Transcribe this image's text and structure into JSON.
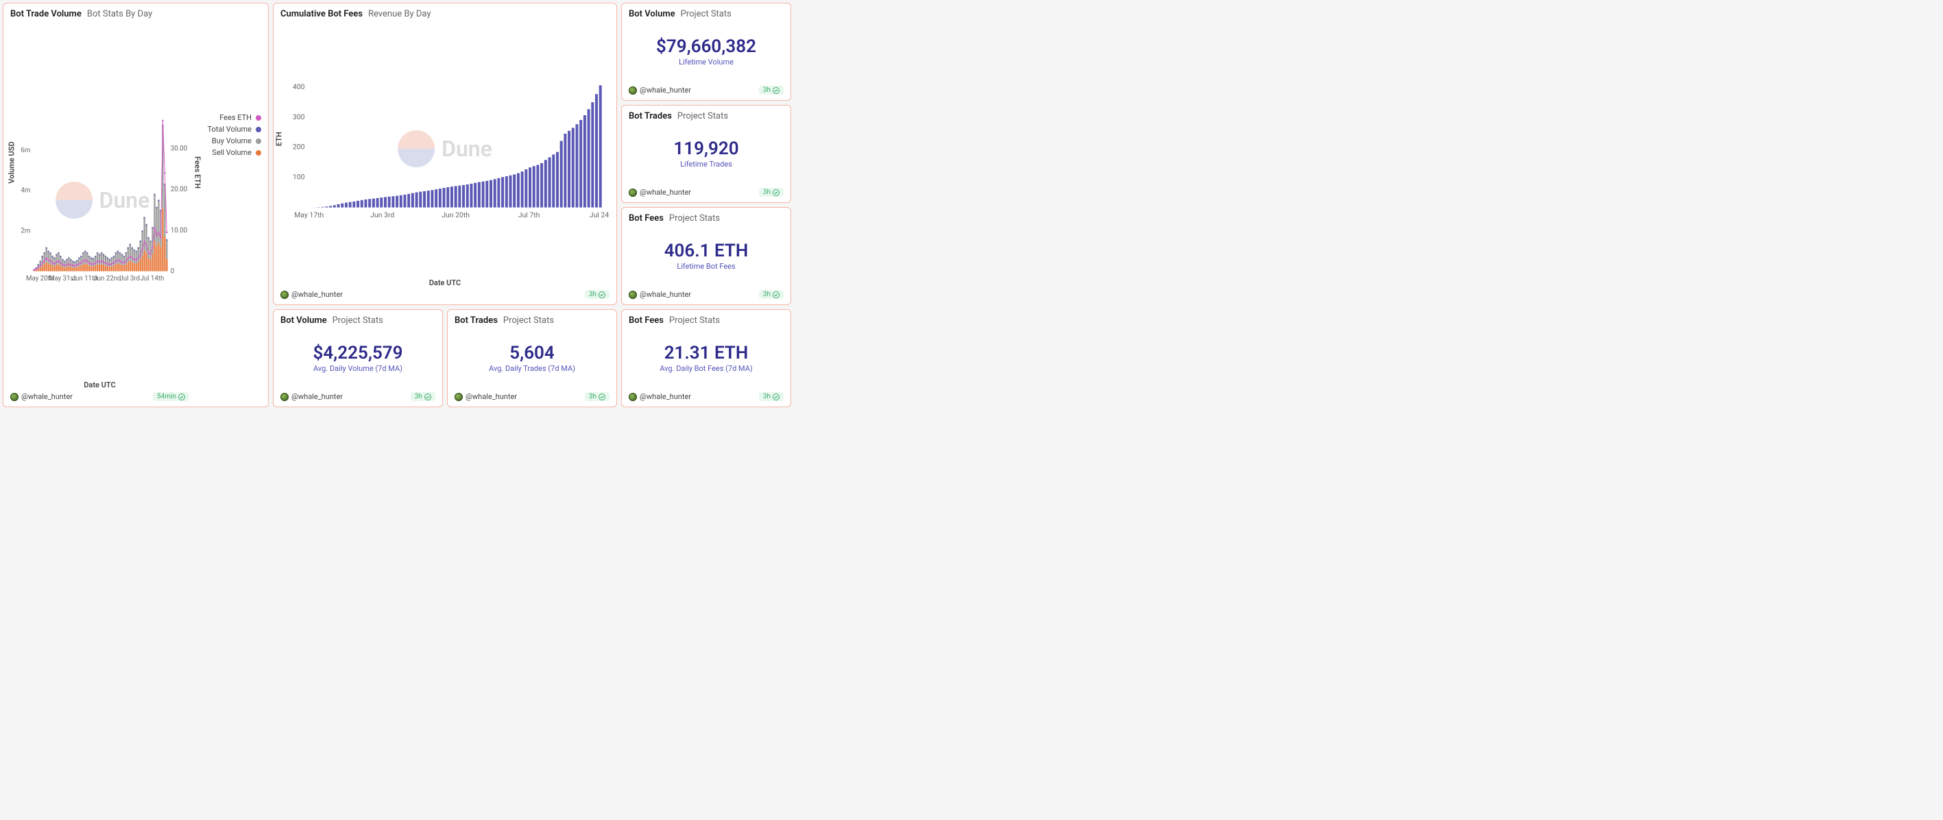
{
  "watermark": "Dune",
  "author": "@whale_hunter",
  "colors": {
    "panel_border": "#f5b5a8",
    "stat_value": "#2d2a8a",
    "stat_label": "#5553b8",
    "freshness_bg": "#e8f8ee",
    "freshness_fg": "#3aab6a",
    "grid_line": "#e8e8e8",
    "series_total": "#7a7aa8",
    "series_buy": "#9d9d9d",
    "series_sell": "#e87b3e",
    "series_fees": "#d15bc3",
    "series_cumulative": "#5b59b5"
  },
  "main_chart": {
    "title": "Bot Trade Volume",
    "subtitle": "Bot Stats By Day",
    "x_label": "Date UTC",
    "y_left_label": "Volume USD",
    "y_right_label": "Fees ETH",
    "y_left_ticks": [
      "2m",
      "4m",
      "6m"
    ],
    "y_left_tick_vals": [
      2,
      4,
      6
    ],
    "y_left_max": 7.5,
    "y_right_ticks": [
      "0",
      "10.00",
      "20.00",
      "30.00"
    ],
    "y_right_tick_vals": [
      0,
      10,
      20,
      30
    ],
    "y_right_max": 37,
    "x_ticks": [
      "May 20th",
      "May 31st",
      "Jun 11th",
      "Jun 22nd",
      "Jul 3rd",
      "Jul 14th"
    ],
    "legend": [
      {
        "label": "Fees ETH",
        "color": "#d15bc3"
      },
      {
        "label": "Total Volume",
        "color": "#5b59b5"
      },
      {
        "label": "Buy Volume",
        "color": "#9d9d9d"
      },
      {
        "label": "Sell Volume",
        "color": "#e87b3e"
      }
    ],
    "freshness": "54min",
    "buy": [
      0.05,
      0.1,
      0.2,
      0.3,
      0.45,
      0.55,
      0.7,
      0.6,
      0.55,
      0.45,
      0.4,
      0.5,
      0.55,
      0.45,
      0.35,
      0.3,
      0.35,
      0.4,
      0.35,
      0.3,
      0.28,
      0.32,
      0.4,
      0.45,
      0.55,
      0.6,
      0.55,
      0.45,
      0.4,
      0.38,
      0.45,
      0.55,
      0.5,
      0.55,
      0.5,
      0.45,
      0.4,
      0.35,
      0.4,
      0.45,
      0.55,
      0.6,
      0.55,
      0.5,
      0.45,
      0.55,
      0.7,
      0.8,
      0.7,
      0.65,
      0.6,
      0.7,
      0.9,
      1.2,
      1.6,
      1.4,
      1.0,
      0.9,
      1.3,
      2.3,
      1.9,
      2.1,
      1.8,
      4.1,
      2.6,
      0.95
    ],
    "sell": [
      0.03,
      0.06,
      0.12,
      0.18,
      0.28,
      0.35,
      0.45,
      0.38,
      0.34,
      0.28,
      0.25,
      0.32,
      0.35,
      0.28,
      0.22,
      0.18,
      0.22,
      0.26,
      0.22,
      0.18,
      0.17,
      0.2,
      0.25,
      0.28,
      0.35,
      0.38,
      0.35,
      0.28,
      0.25,
      0.24,
      0.28,
      0.35,
      0.32,
      0.35,
      0.32,
      0.28,
      0.25,
      0.22,
      0.25,
      0.28,
      0.35,
      0.38,
      0.35,
      0.32,
      0.28,
      0.35,
      0.45,
      0.52,
      0.45,
      0.4,
      0.38,
      0.45,
      0.58,
      0.78,
      1.05,
      0.9,
      0.65,
      0.58,
      0.85,
      1.5,
      1.25,
      1.4,
      1.2,
      3.1,
      1.7,
      0.6
    ],
    "fees": [
      0.3,
      0.5,
      0.9,
      1.3,
      2.0,
      2.5,
      3.2,
      2.7,
      2.5,
      2.0,
      1.8,
      2.3,
      2.5,
      2.0,
      1.6,
      1.4,
      1.6,
      1.8,
      1.6,
      1.4,
      1.3,
      1.5,
      1.8,
      2.0,
      2.5,
      2.7,
      2.5,
      2.0,
      1.8,
      1.7,
      2.0,
      2.5,
      2.2,
      2.5,
      2.2,
      2.0,
      1.8,
      1.6,
      1.8,
      2.0,
      2.5,
      2.7,
      2.5,
      2.2,
      2.0,
      2.5,
      3.2,
      3.6,
      3.2,
      2.9,
      2.7,
      3.2,
      4.1,
      5.5,
      7.2,
      6.3,
      4.5,
      4.1,
      5.9,
      10.5,
      8.6,
      9.5,
      8.2,
      36.8,
      24.0,
      9.5
    ]
  },
  "cumulative_chart": {
    "title": "Cumulative Bot Fees",
    "subtitle": "Revenue By Day",
    "x_label": "Date UTC",
    "y_label": "ETH",
    "y_ticks": [
      "100",
      "200",
      "300",
      "400"
    ],
    "y_tick_vals": [
      100,
      200,
      300,
      400
    ],
    "y_max": 420,
    "x_ticks": [
      "May 17th",
      "Jun 3rd",
      "Jun 20th",
      "Jul 7th",
      "Jul 24th"
    ],
    "freshness": "3h",
    "values": [
      0,
      0.3,
      0.8,
      1.7,
      3.0,
      5.0,
      7.5,
      10.7,
      13.4,
      15.9,
      17.9,
      19.7,
      22.0,
      24.5,
      26.5,
      28.1,
      29.5,
      31.1,
      32.9,
      34.5,
      35.9,
      37.2,
      38.7,
      40.5,
      42.5,
      45.0,
      47.7,
      50.2,
      52.2,
      54.0,
      55.7,
      57.7,
      60.2,
      62.4,
      64.9,
      67.1,
      69.1,
      70.9,
      72.5,
      74.3,
      76.3,
      78.8,
      81.5,
      84.0,
      86.2,
      88.2,
      90.7,
      93.9,
      97.5,
      100.7,
      103.6,
      106.3,
      109.5,
      113.6,
      119.1,
      126.3,
      132.6,
      137.1,
      141.2,
      147.1,
      157.6,
      166.2,
      175.7,
      183.9,
      220.7,
      244.7,
      254.2,
      264,
      276,
      290,
      306,
      326,
      349,
      376,
      405
    ]
  },
  "stats": {
    "volume_life": {
      "title": "Bot Volume",
      "subtitle": "Project Stats",
      "value": "$79,660,382",
      "label": "Lifetime Volume",
      "freshness": "3h"
    },
    "trades_life": {
      "title": "Bot Trades",
      "subtitle": "Project Stats",
      "value": "119,920",
      "label": "Lifetime Trades",
      "freshness": "3h"
    },
    "fees_life": {
      "title": "Bot Fees",
      "subtitle": "Project Stats",
      "value": "406.1 ETH",
      "label": "Lifetime Bot Fees",
      "freshness": "3h"
    },
    "volume_7d": {
      "title": "Bot Volume",
      "subtitle": "Project Stats",
      "value": "$4,225,579",
      "label": "Avg. Daily Volume (7d MA)",
      "freshness": "3h"
    },
    "trades_7d": {
      "title": "Bot Trades",
      "subtitle": "Project Stats",
      "value": "5,604",
      "label": "Avg. Daily Trades (7d MA)",
      "freshness": "3h"
    },
    "fees_7d": {
      "title": "Bot Fees",
      "subtitle": "Project Stats",
      "value": "21.31 ETH",
      "label": "Avg. Daily Bot Fees (7d MA)",
      "freshness": "3h"
    }
  }
}
